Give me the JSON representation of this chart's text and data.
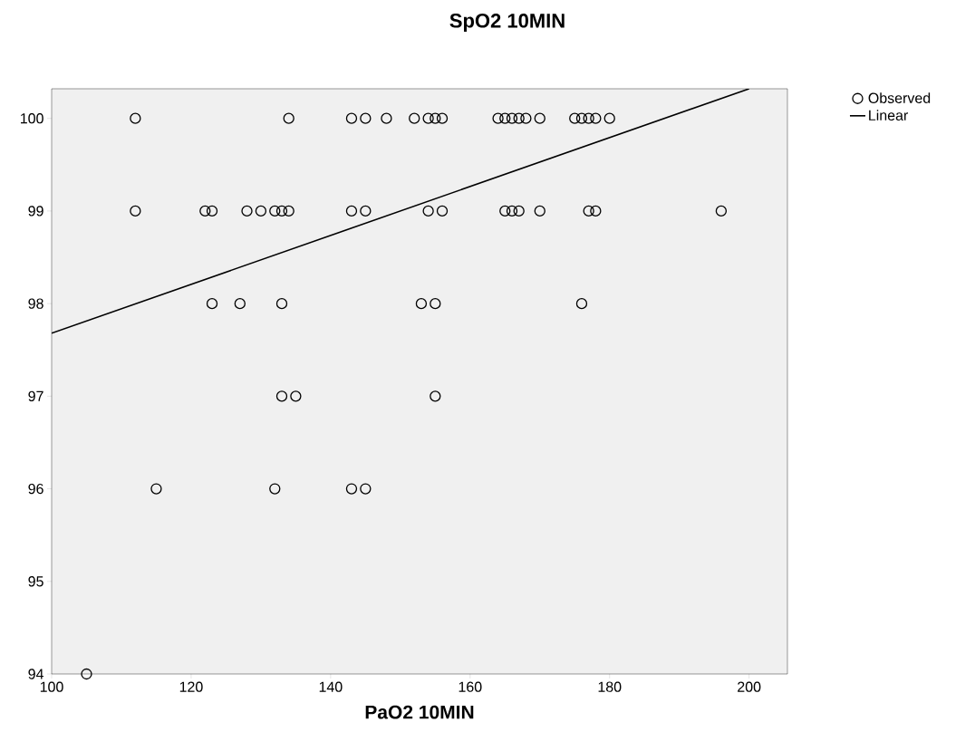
{
  "chart_data": {
    "type": "scatter",
    "title": "SpO2 10MIN",
    "xlabel": "PaO2 10MIN",
    "xlim": [
      100,
      205.5
    ],
    "ylim": [
      94,
      100.32
    ],
    "xticks": [
      100,
      120,
      140,
      160,
      180,
      200
    ],
    "yticks": [
      94,
      95,
      96,
      97,
      98,
      99,
      100
    ],
    "legend": "top right",
    "marker": "circle",
    "series": [
      {
        "name": "Observed",
        "color": "#000000",
        "x": [
          112,
          134,
          143,
          145,
          148,
          152,
          154,
          155,
          156,
          164,
          165,
          166,
          167,
          168,
          170,
          175,
          176,
          177,
          178,
          180,
          112,
          122,
          123,
          128,
          130,
          132,
          133,
          134,
          143,
          145,
          154,
          156,
          165,
          166,
          167,
          170,
          177,
          178,
          196,
          123,
          127,
          133,
          153,
          155,
          176,
          133,
          135,
          155,
          115,
          132,
          143,
          145,
          105
        ],
        "values": [
          100,
          100,
          100,
          100,
          100,
          100,
          100,
          100,
          100,
          100,
          100,
          100,
          100,
          100,
          100,
          100,
          100,
          100,
          100,
          100,
          99,
          99,
          99,
          99,
          99,
          99,
          99,
          99,
          99,
          99,
          99,
          99,
          99,
          99,
          99,
          99,
          99,
          99,
          99,
          98,
          98,
          98,
          98,
          98,
          98,
          97,
          97,
          97,
          96,
          96,
          96,
          96,
          94
        ]
      },
      {
        "name": "Linear",
        "type": "line",
        "marker": "none",
        "color": "#000000",
        "x": [
          100,
          200
        ],
        "values": [
          97.68,
          100.32
        ]
      }
    ]
  }
}
